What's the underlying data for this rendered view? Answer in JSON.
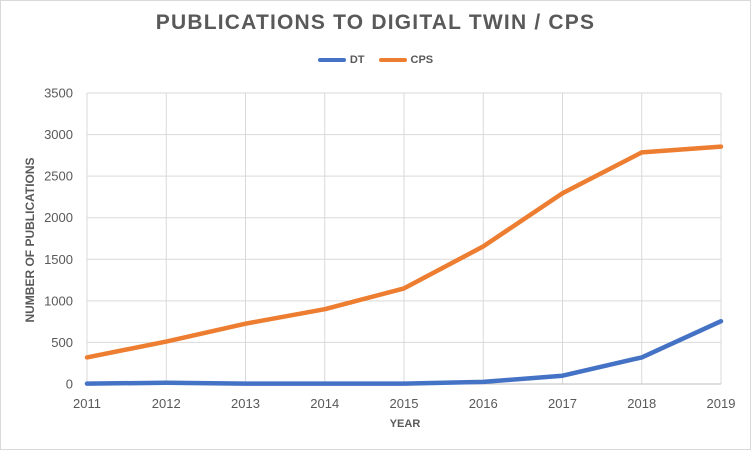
{
  "chart_data": {
    "type": "line",
    "title": "PUBLICATIONS TO DIGITAL TWIN / CPS",
    "xlabel": "YEAR",
    "ylabel": "NUMBER OF PUBLICATIONS",
    "x": [
      "2011",
      "2012",
      "2013",
      "2014",
      "2015",
      "2016",
      "2017",
      "2018",
      "2019"
    ],
    "ylim": [
      0,
      3500
    ],
    "yticks": [
      0,
      500,
      1000,
      1500,
      2000,
      2500,
      3000,
      3500
    ],
    "grid": true,
    "legend_position": "top",
    "series": [
      {
        "name": "DT",
        "color": "#4472c4",
        "values": [
          5,
          15,
          5,
          5,
          5,
          25,
          100,
          320,
          755
        ]
      },
      {
        "name": "CPS",
        "color": "#ed7d31",
        "values": [
          320,
          510,
          725,
          900,
          1150,
          1655,
          2295,
          2785,
          2855
        ]
      }
    ]
  }
}
